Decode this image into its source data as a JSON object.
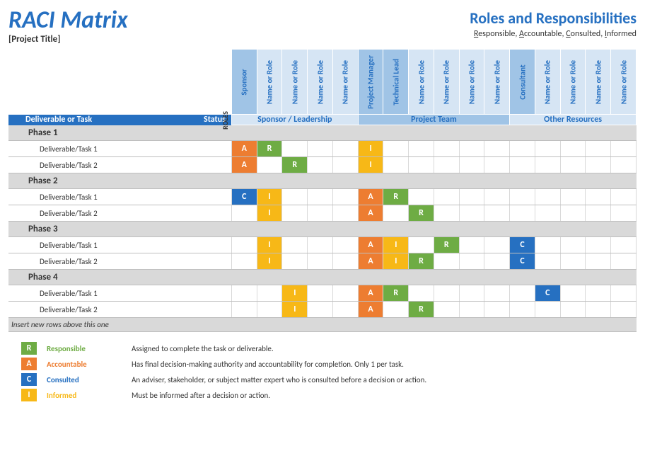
{
  "header": {
    "title": "RACI Matrix",
    "subtitle": "[Project Title]",
    "roles_title": "Roles and Responsibilities",
    "raci_parts": [
      "Responsible",
      "Accountable",
      "Consulted",
      "Informed"
    ],
    "roles_label": "ROLES"
  },
  "colors": {
    "R": "#6eac44",
    "A": "#ed7d31",
    "C": "#2670c1",
    "I": "#f7b817",
    "header_blue": "#2670c1",
    "role_dark": "#a0c4e6",
    "role_light": "#d6e5f4",
    "phase_gray": "#d9d9d9"
  },
  "band": {
    "deliverable": "Deliverable or Task",
    "status": "Status",
    "groups": [
      {
        "label": "Sponsor / Leadership",
        "span": 5,
        "shade": "light"
      },
      {
        "label": "Project Team",
        "span": 6,
        "shade": "dark"
      },
      {
        "label": "Other Resources",
        "span": 5,
        "shade": "light"
      }
    ]
  },
  "roles": [
    {
      "label": "Sponsor",
      "shade": "dark"
    },
    {
      "label": "Name or Role",
      "shade": "light"
    },
    {
      "label": "Name or Role",
      "shade": "light"
    },
    {
      "label": "Name or Role",
      "shade": "light"
    },
    {
      "label": "Name or Role",
      "shade": "light"
    },
    {
      "label": "Project Manager",
      "shade": "dark"
    },
    {
      "label": "Technical Lead",
      "shade": "dark"
    },
    {
      "label": "Name or Role",
      "shade": "light"
    },
    {
      "label": "Name or Role",
      "shade": "light"
    },
    {
      "label": "Name or Role",
      "shade": "light"
    },
    {
      "label": "Name or Role",
      "shade": "light"
    },
    {
      "label": "Consultant",
      "shade": "dark"
    },
    {
      "label": "Name or Role",
      "shade": "light"
    },
    {
      "label": "Name or Role",
      "shade": "light"
    },
    {
      "label": "Name or Role",
      "shade": "light"
    },
    {
      "label": "Name or Role",
      "shade": "light"
    }
  ],
  "rows": [
    {
      "type": "phase",
      "label": "Phase 1"
    },
    {
      "type": "task",
      "label": "Deliverable/Task 1",
      "cells": [
        "A",
        "R",
        "",
        "",
        "",
        "I",
        "",
        "",
        "",
        "",
        "",
        "",
        "",
        "",
        "",
        ""
      ]
    },
    {
      "type": "task",
      "label": "Deliverable/Task 2",
      "cells": [
        "A",
        "",
        "R",
        "",
        "",
        "I",
        "",
        "",
        "",
        "",
        "",
        "",
        "",
        "",
        "",
        ""
      ]
    },
    {
      "type": "phase",
      "label": "Phase 2"
    },
    {
      "type": "task",
      "label": "Deliverable/Task 1",
      "cells": [
        "C",
        "I",
        "",
        "",
        "",
        "A",
        "R",
        "",
        "",
        "",
        "",
        "",
        "",
        "",
        "",
        ""
      ]
    },
    {
      "type": "task",
      "label": "Deliverable/Task 2",
      "cells": [
        "",
        "I",
        "",
        "",
        "",
        "A",
        "",
        "R",
        "",
        "",
        "",
        "",
        "",
        "",
        "",
        ""
      ]
    },
    {
      "type": "phase",
      "label": "Phase 3"
    },
    {
      "type": "task",
      "label": "Deliverable/Task 1",
      "cells": [
        "",
        "I",
        "",
        "",
        "",
        "A",
        "I",
        "",
        "R",
        "",
        "",
        "C",
        "",
        "",
        "",
        ""
      ]
    },
    {
      "type": "task",
      "label": "Deliverable/Task 2",
      "cells": [
        "",
        "I",
        "",
        "",
        "",
        "A",
        "I",
        "R",
        "",
        "",
        "",
        "C",
        "",
        "",
        "",
        ""
      ]
    },
    {
      "type": "phase",
      "label": "Phase 4"
    },
    {
      "type": "task",
      "label": "Deliverable/Task 1",
      "cells": [
        "",
        "",
        "I",
        "",
        "",
        "A",
        "R",
        "",
        "",
        "",
        "",
        "",
        "C",
        "",
        "",
        ""
      ]
    },
    {
      "type": "task",
      "label": "Deliverable/Task 2",
      "cells": [
        "",
        "",
        "I",
        "",
        "",
        "A",
        "",
        "R",
        "",
        "",
        "",
        "",
        "",
        "",
        "",
        ""
      ]
    }
  ],
  "footer_note": "Insert new rows above this one",
  "legend": [
    {
      "code": "R",
      "label": "Responsible",
      "desc": "Assigned to complete the task or deliverable."
    },
    {
      "code": "A",
      "label": "Accountable",
      "desc": "Has final decision-making authority and accountability for completion. Only 1 per task."
    },
    {
      "code": "C",
      "label": "Consulted",
      "desc": "An adviser, stakeholder, or subject matter expert who is consulted before a decision or action."
    },
    {
      "code": "I",
      "label": "Informed",
      "desc": "Must be informed after a decision or action."
    }
  ]
}
